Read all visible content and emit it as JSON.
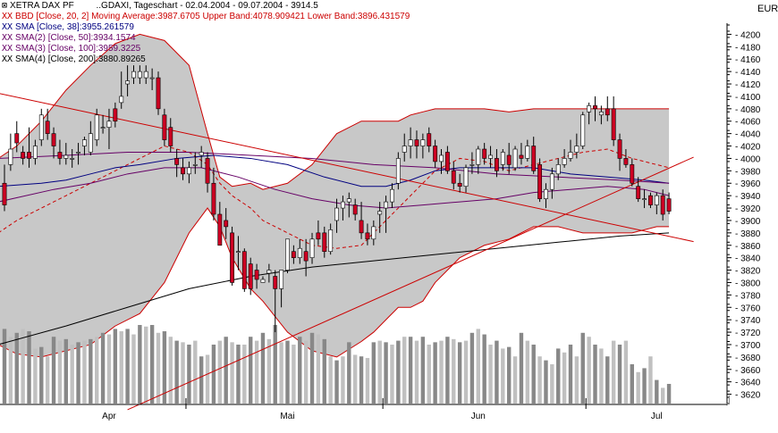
{
  "header": {
    "instrument": "XETRA DAX PF",
    "description": "..GDAXI, Tageschart - 02.04.2004 - 09.07.2004 - 3914.5",
    "currency": "EUR"
  },
  "legend": [
    {
      "marker": "XX",
      "text": "BBD [Close, 20, 2] Moving Average:3987.6705 Upper Band:4078.909421 Lower Band:3896.431579",
      "color": "#cc0000"
    },
    {
      "marker": "XX",
      "text": "SMA [Close, 38]:3955.261579",
      "color": "#000080"
    },
    {
      "marker": "XX",
      "text": "SMA(2) [Close, 50]:3934.1574",
      "color": "#660066"
    },
    {
      "marker": "XX",
      "text": "SMA(3) [Close, 100]:3959.3225",
      "color": "#660066"
    },
    {
      "marker": "XX",
      "text": "SMA(4) [Close, 200]:3880.89265",
      "color": "#000000"
    }
  ],
  "chart_data": {
    "type": "candlestick",
    "title": "..GDAXI, Tageschart - 02.04.2004 - 09.07.2004 - 3914.5",
    "ylabel": "EUR",
    "ylim": [
      3605,
      4215
    ],
    "y_ticks": [
      3620,
      3640,
      3660,
      3680,
      3700,
      3720,
      3740,
      3760,
      3780,
      3800,
      3820,
      3840,
      3860,
      3880,
      3900,
      3920,
      3940,
      3960,
      3980,
      4000,
      4020,
      4040,
      4060,
      4080,
      4100,
      4120,
      4140,
      4160,
      4180,
      4200
    ],
    "x_month_labels": [
      "Apr",
      "Mai",
      "Jun",
      "Jul"
    ],
    "x_month_label_pos": [
      17,
      46,
      77,
      106
    ],
    "x_month_ticks": [
      29.5,
      61.5,
      94.5
    ],
    "x_range": [
      0,
      117
    ],
    "grid": false,
    "colors": {
      "up": "#ffffff",
      "down": "#cc0022",
      "band_fill": "#c8c8c8",
      "band_line": "#cc0000",
      "ma": "#cc0000",
      "volume_dark": "#888888",
      "volume_light": "#c0c0c0"
    },
    "candles": [
      [
        0,
        3960,
        3990,
        3915,
        3925
      ],
      [
        1,
        3990,
        4040,
        3980,
        4015
      ],
      [
        2,
        4040,
        4060,
        4010,
        4025
      ],
      [
        3,
        4010,
        4020,
        3990,
        4000
      ],
      [
        4,
        4010,
        4050,
        3985,
        4000
      ],
      [
        5,
        4000,
        4030,
        3990,
        4020
      ],
      [
        6,
        4030,
        4080,
        4020,
        4070
      ],
      [
        7,
        4060,
        4080,
        4030,
        4040
      ],
      [
        8,
        4040,
        4050,
        4000,
        4020
      ],
      [
        9,
        4010,
        4030,
        3990,
        4000
      ],
      [
        10,
        4000,
        4025,
        3990,
        4005
      ],
      [
        11,
        4000,
        4015,
        3985,
        4000
      ],
      [
        12,
        4010,
        4025,
        3990,
        4010
      ],
      [
        13,
        4020,
        4035,
        4005,
        4030
      ],
      [
        14,
        4010,
        4060,
        4005,
        4040
      ],
      [
        15,
        4030,
        4080,
        4020,
        4070
      ],
      [
        16,
        4050,
        4070,
        4040,
        4050
      ],
      [
        17,
        4050,
        4080,
        4015,
        4060
      ],
      [
        18,
        4080,
        4090,
        4050,
        4060
      ],
      [
        19,
        4090,
        4140,
        4080,
        4100
      ],
      [
        20,
        4120,
        4150,
        4100,
        4125
      ],
      [
        21,
        4130,
        4150,
        4120,
        4140
      ],
      [
        22,
        4130,
        4150,
        4120,
        4140
      ],
      [
        23,
        4130,
        4150,
        4120,
        4140
      ],
      [
        24,
        4130,
        4145,
        4110,
        4130
      ],
      [
        25,
        4130,
        4140,
        4070,
        4080
      ],
      [
        26,
        4070,
        4080,
        4020,
        4030
      ],
      [
        27,
        4050,
        4065,
        4010,
        4020
      ],
      [
        28,
        4000,
        4015,
        3970,
        3990
      ],
      [
        29,
        3985,
        4000,
        3965,
        3975
      ],
      [
        30,
        3975,
        3995,
        3960,
        3985
      ],
      [
        31,
        3990,
        4010,
        3975,
        3990
      ],
      [
        32,
        4005,
        4020,
        3985,
        4010
      ],
      [
        33,
        4000,
        4010,
        3945,
        3960
      ],
      [
        34,
        3960,
        3985,
        3900,
        3910
      ],
      [
        35,
        3910,
        3930,
        3860,
        3860
      ],
      [
        36,
        3900,
        3920,
        3870,
        3890
      ],
      [
        37,
        3880,
        3890,
        3795,
        3800
      ],
      [
        38,
        3850,
        3875,
        3820,
        3850
      ],
      [
        39,
        3850,
        3855,
        3785,
        3790
      ],
      [
        40,
        3830,
        3840,
        3780,
        3790
      ],
      [
        41,
        3820,
        3830,
        3790,
        3805
      ],
      [
        42,
        3800,
        3810,
        3800,
        3805
      ],
      [
        43,
        3815,
        3830,
        3800,
        3820
      ],
      [
        44,
        3810,
        3820,
        3720,
        3790
      ],
      [
        45,
        3790,
        3820,
        3760,
        3820
      ],
      [
        46,
        3820,
        3870,
        3815,
        3870
      ],
      [
        47,
        3850,
        3860,
        3830,
        3840
      ],
      [
        48,
        3840,
        3870,
        3830,
        3855
      ],
      [
        49,
        3850,
        3870,
        3810,
        3835
      ],
      [
        50,
        3840,
        3880,
        3830,
        3870
      ],
      [
        51,
        3880,
        3900,
        3860,
        3870
      ],
      [
        52,
        3880,
        3890,
        3840,
        3850
      ],
      [
        53,
        3850,
        3895,
        3845,
        3885
      ],
      [
        54,
        3900,
        3935,
        3880,
        3920
      ],
      [
        55,
        3920,
        3940,
        3900,
        3930
      ],
      [
        56,
        3930,
        3945,
        3905,
        3935
      ],
      [
        57,
        3925,
        3935,
        3900,
        3910
      ],
      [
        58,
        3900,
        3930,
        3870,
        3880
      ],
      [
        59,
        3880,
        3895,
        3860,
        3870
      ],
      [
        60,
        3870,
        3900,
        3860,
        3890
      ],
      [
        61,
        3910,
        3930,
        3880,
        3915
      ],
      [
        62,
        3920,
        3940,
        3880,
        3930
      ],
      [
        63,
        3930,
        3960,
        3920,
        3950
      ],
      [
        64,
        3960,
        4010,
        3950,
        4000
      ],
      [
        65,
        4010,
        4040,
        3995,
        4020
      ],
      [
        66,
        4020,
        4050,
        4000,
        4030
      ],
      [
        67,
        4030,
        4045,
        4000,
        4020
      ],
      [
        68,
        4020,
        4040,
        4000,
        4030
      ],
      [
        69,
        4040,
        4050,
        4010,
        4020
      ],
      [
        70,
        4020,
        4030,
        3985,
        3995
      ],
      [
        71,
        3995,
        4015,
        3975,
        4005
      ],
      [
        72,
        4010,
        4020,
        3975,
        3980
      ],
      [
        73,
        3980,
        3995,
        3950,
        3960
      ],
      [
        74,
        3960,
        3975,
        3945,
        3955
      ],
      [
        75,
        3955,
        3990,
        3945,
        3985
      ],
      [
        76,
        3990,
        4010,
        3975,
        3990
      ],
      [
        77,
        3990,
        4020,
        3975,
        4015
      ],
      [
        78,
        4015,
        4025,
        3990,
        4000
      ],
      [
        79,
        4000,
        4020,
        3985,
        4005
      ],
      [
        80,
        4000,
        4015,
        3970,
        3980
      ],
      [
        81,
        3990,
        4015,
        3980,
        4010
      ],
      [
        82,
        4005,
        4025,
        3975,
        3990
      ],
      [
        83,
        3985,
        4020,
        3980,
        4015
      ],
      [
        84,
        4005,
        4025,
        3990,
        4000
      ],
      [
        85,
        4000,
        4030,
        3995,
        4020
      ],
      [
        86,
        4020,
        4035,
        3975,
        3980
      ],
      [
        87,
        3990,
        4000,
        3930,
        3935
      ],
      [
        88,
        3935,
        3960,
        3920,
        3950
      ],
      [
        89,
        3950,
        3985,
        3935,
        3975
      ],
      [
        90,
        3975,
        4000,
        3965,
        3990
      ],
      [
        91,
        3990,
        4015,
        3985,
        4000
      ],
      [
        92,
        4000,
        4030,
        3995,
        4010
      ],
      [
        93,
        4010,
        4040,
        4000,
        4020
      ],
      [
        94,
        4020,
        4075,
        4015,
        4070
      ],
      [
        95,
        4075,
        4090,
        4055,
        4085
      ],
      [
        96,
        4085,
        4100,
        4060,
        4080
      ],
      [
        97,
        4070,
        4085,
        4055,
        4075
      ],
      [
        98,
        4080,
        4100,
        4060,
        4070
      ],
      [
        99,
        4080,
        4100,
        4020,
        4030
      ],
      [
        100,
        4030,
        4040,
        3980,
        4000
      ],
      [
        101,
        4000,
        4015,
        3985,
        3990
      ],
      [
        102,
        3990,
        4000,
        3955,
        3960
      ],
      [
        103,
        3955,
        3970,
        3930,
        3935
      ],
      [
        104,
        3935,
        3950,
        3920,
        3935
      ],
      [
        105,
        3940,
        3945,
        3920,
        3925
      ],
      [
        106,
        3925,
        3945,
        3910,
        3940
      ],
      [
        107,
        3940,
        3950,
        3900,
        3910
      ],
      [
        108,
        3935,
        3945,
        3910,
        3915
      ]
    ],
    "volumes": [
      95,
      85,
      90,
      95,
      92,
      70,
      72,
      60,
      85,
      80,
      82,
      75,
      78,
      80,
      82,
      85,
      90,
      88,
      95,
      92,
      95,
      88,
      100,
      98,
      100,
      90,
      92,
      85,
      80,
      78,
      75,
      80,
      60,
      62,
      75,
      80,
      85,
      78,
      75,
      75,
      85,
      80,
      90,
      82,
      100,
      78,
      80,
      75,
      85,
      80,
      90,
      88,
      82,
      60,
      55,
      60,
      78,
      62,
      60,
      58,
      78,
      80,
      78,
      75,
      80,
      85,
      85,
      80,
      85,
      75,
      78,
      80,
      85,
      82,
      78,
      80,
      90,
      95,
      88,
      75,
      80,
      70,
      72,
      60,
      90,
      80,
      75,
      60,
      55,
      50,
      70,
      65,
      75,
      60,
      90,
      85,
      75,
      70,
      60,
      80,
      75,
      80,
      50,
      40,
      45,
      60,
      30,
      20,
      25
    ],
    "bollinger": {
      "x": [
        -1,
        2,
        6,
        10,
        14,
        18,
        22,
        26,
        30,
        33,
        35,
        37,
        40,
        42,
        46,
        50,
        54,
        58,
        60,
        62,
        64,
        66,
        68,
        70,
        74,
        78,
        82,
        86,
        90,
        94,
        98,
        102,
        106,
        108
      ],
      "upper": [
        4000,
        4020,
        4060,
        4110,
        4150,
        4185,
        4200,
        4190,
        4150,
        4040,
        3970,
        3955,
        3960,
        3950,
        3960,
        3990,
        4040,
        4060,
        4060,
        4060,
        4060,
        4070,
        4075,
        4080,
        4080,
        4080,
        4075,
        4080,
        4080,
        4080,
        4080,
        4080,
        4080,
        4080
      ],
      "lower": [
        3700,
        3685,
        3680,
        3690,
        3700,
        3730,
        3750,
        3800,
        3880,
        3920,
        3890,
        3840,
        3790,
        3770,
        3720,
        3690,
        3680,
        3705,
        3720,
        3740,
        3760,
        3760,
        3770,
        3800,
        3840,
        3860,
        3870,
        3890,
        3890,
        3880,
        3880,
        3880,
        3890,
        3890
      ],
      "mid": [
        3880,
        3900,
        3920,
        3940,
        3960,
        3980,
        4000,
        4020,
        4010,
        3990,
        3960,
        3940,
        3920,
        3900,
        3880,
        3860,
        3855,
        3860,
        3880,
        3900,
        3920,
        3940,
        3960,
        3980,
        4000,
        3995,
        3980,
        3990,
        4000,
        4010,
        4015,
        4000,
        3990,
        3985
      ]
    },
    "sma38": {
      "x": [
        -1,
        6,
        10,
        14,
        18,
        22,
        28,
        34,
        40,
        46,
        52,
        58,
        62,
        66,
        70,
        74,
        80,
        86,
        92,
        98,
        104,
        108
      ],
      "y": [
        3955,
        3960,
        3965,
        3975,
        3985,
        3990,
        4000,
        4005,
        4000,
        3990,
        3970,
        3955,
        3955,
        3965,
        3980,
        3985,
        3985,
        3985,
        3975,
        3970,
        3965,
        3960
      ]
    },
    "sma50": {
      "x": [
        -1,
        8,
        14,
        20,
        26,
        32,
        38,
        44,
        50,
        56,
        62,
        68,
        74,
        80,
        86,
        92,
        98,
        104,
        108
      ],
      "y": [
        3930,
        3950,
        3960,
        3975,
        3985,
        3985,
        3970,
        3950,
        3935,
        3925,
        3920,
        3925,
        3930,
        3935,
        3945,
        3950,
        3955,
        3950,
        3940
      ]
    },
    "sma100": {
      "x": [
        -1,
        10,
        20,
        30,
        40,
        50,
        60,
        70,
        80,
        90,
        100,
        108
      ],
      "y": [
        4000,
        4005,
        4010,
        4010,
        4005,
        4000,
        3990,
        3985,
        3975,
        3970,
        3965,
        3960
      ]
    },
    "sma200": {
      "x": [
        -1,
        10,
        20,
        30,
        40,
        50,
        60,
        70,
        80,
        90,
        100,
        108
      ],
      "y": [
        3700,
        3730,
        3760,
        3790,
        3810,
        3825,
        3835,
        3845,
        3855,
        3865,
        3875,
        3880
      ]
    },
    "trendlines": [
      {
        "x": [
          -1,
          112
        ],
        "y": [
          4105,
          3866
        ],
        "color": "#cc0000"
      },
      {
        "x": [
          20,
          112
        ],
        "y": [
          3595,
          4002
        ],
        "color": "#cc0000"
      }
    ]
  }
}
